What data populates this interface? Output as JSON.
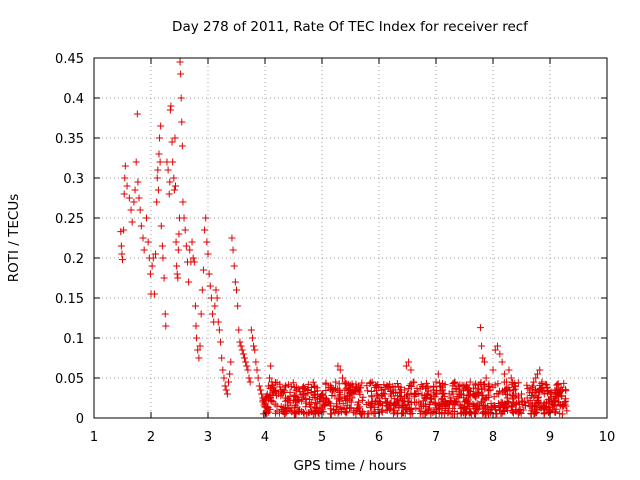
{
  "chart_data": {
    "type": "scatter",
    "title": "Day 278 of 2011, Rate Of TEC Index for receiver recf",
    "xlabel": "GPS time / hours",
    "ylabel": "ROTI / TECUs",
    "xlim": [
      1,
      10
    ],
    "ylim": [
      0,
      0.45
    ],
    "xticks": [
      "1",
      "2",
      "3",
      "4",
      "5",
      "6",
      "7",
      "8",
      "9",
      "10"
    ],
    "yticks": [
      "0",
      "0.05",
      "0.1",
      "0.15",
      "0.2",
      "0.25",
      "0.3",
      "0.35",
      "0.4",
      "0.45"
    ],
    "grid": true,
    "marker": "plus",
    "color": "#e00000",
    "series": [
      {
        "points": [
          [
            1.47,
            0.233
          ],
          [
            1.48,
            0.215
          ],
          [
            1.49,
            0.205
          ],
          [
            1.5,
            0.198
          ],
          [
            1.52,
            0.235
          ],
          [
            1.53,
            0.28
          ],
          [
            1.54,
            0.3
          ],
          [
            1.55,
            0.315
          ],
          [
            1.58,
            0.29
          ],
          [
            1.62,
            0.275
          ],
          [
            1.65,
            0.26
          ],
          [
            1.67,
            0.245
          ],
          [
            1.7,
            0.27
          ],
          [
            1.72,
            0.285
          ],
          [
            1.74,
            0.32
          ],
          [
            1.76,
            0.38
          ],
          [
            1.77,
            0.295
          ],
          [
            1.79,
            0.275
          ],
          [
            1.81,
            0.26
          ],
          [
            1.83,
            0.24
          ],
          [
            1.86,
            0.225
          ],
          [
            1.88,
            0.21
          ],
          [
            1.92,
            0.25
          ],
          [
            1.95,
            0.22
          ],
          [
            1.97,
            0.2
          ],
          [
            1.99,
            0.18
          ],
          [
            2.0,
            0.155
          ],
          [
            2.02,
            0.19
          ],
          [
            2.04,
            0.2
          ],
          [
            2.06,
            0.155
          ],
          [
            2.08,
            0.205
          ],
          [
            2.1,
            0.27
          ],
          [
            2.11,
            0.3
          ],
          [
            2.12,
            0.31
          ],
          [
            2.13,
            0.285
          ],
          [
            2.14,
            0.33
          ],
          [
            2.15,
            0.35
          ],
          [
            2.16,
            0.32
          ],
          [
            2.17,
            0.365
          ],
          [
            2.18,
            0.24
          ],
          [
            2.2,
            0.215
          ],
          [
            2.21,
            0.2
          ],
          [
            2.23,
            0.175
          ],
          [
            2.25,
            0.13
          ],
          [
            2.26,
            0.115
          ],
          [
            2.28,
            0.32
          ],
          [
            2.3,
            0.31
          ],
          [
            2.32,
            0.28
          ],
          [
            2.33,
            0.295
          ],
          [
            2.34,
            0.385
          ],
          [
            2.35,
            0.39
          ],
          [
            2.37,
            0.345
          ],
          [
            2.38,
            0.32
          ],
          [
            2.4,
            0.3
          ],
          [
            2.41,
            0.285
          ],
          [
            2.42,
            0.35
          ],
          [
            2.43,
            0.29
          ],
          [
            2.44,
            0.22
          ],
          [
            2.45,
            0.19
          ],
          [
            2.46,
            0.18
          ],
          [
            2.47,
            0.175
          ],
          [
            2.48,
            0.21
          ],
          [
            2.49,
            0.23
          ],
          [
            2.5,
            0.25
          ],
          [
            2.51,
            0.445
          ],
          [
            2.52,
            0.43
          ],
          [
            2.53,
            0.4
          ],
          [
            2.54,
            0.37
          ],
          [
            2.55,
            0.34
          ],
          [
            2.56,
            0.27
          ],
          [
            2.58,
            0.25
          ],
          [
            2.6,
            0.235
          ],
          [
            2.62,
            0.215
          ],
          [
            2.64,
            0.195
          ],
          [
            2.66,
            0.17
          ],
          [
            2.68,
            0.21
          ],
          [
            2.7,
            0.195
          ],
          [
            2.72,
            0.22
          ],
          [
            2.74,
            0.2
          ],
          [
            2.76,
            0.195
          ],
          [
            2.78,
            0.14
          ],
          [
            2.79,
            0.115
          ],
          [
            2.8,
            0.1
          ],
          [
            2.82,
            0.085
          ],
          [
            2.84,
            0.075
          ],
          [
            2.86,
            0.09
          ],
          [
            2.88,
            0.13
          ],
          [
            2.9,
            0.16
          ],
          [
            2.92,
            0.185
          ],
          [
            2.94,
            0.235
          ],
          [
            2.96,
            0.25
          ],
          [
            2.98,
            0.22
          ],
          [
            3.0,
            0.205
          ],
          [
            3.02,
            0.18
          ],
          [
            3.04,
            0.165
          ],
          [
            3.06,
            0.15
          ],
          [
            3.08,
            0.13
          ],
          [
            3.1,
            0.12
          ],
          [
            3.12,
            0.14
          ],
          [
            3.14,
            0.16
          ],
          [
            3.16,
            0.15
          ],
          [
            3.18,
            0.12
          ],
          [
            3.2,
            0.11
          ],
          [
            3.22,
            0.095
          ],
          [
            3.24,
            0.075
          ],
          [
            3.26,
            0.06
          ],
          [
            3.28,
            0.05
          ],
          [
            3.3,
            0.04
          ],
          [
            3.32,
            0.035
          ],
          [
            3.34,
            0.03
          ],
          [
            3.36,
            0.045
          ],
          [
            3.38,
            0.055
          ],
          [
            3.4,
            0.07
          ],
          [
            3.42,
            0.225
          ],
          [
            3.44,
            0.21
          ],
          [
            3.46,
            0.19
          ],
          [
            3.48,
            0.17
          ],
          [
            3.5,
            0.16
          ],
          [
            3.52,
            0.14
          ],
          [
            3.54,
            0.11
          ],
          [
            3.56,
            0.095
          ],
          [
            3.58,
            0.09
          ],
          [
            3.6,
            0.085
          ],
          [
            3.62,
            0.08
          ],
          [
            3.64,
            0.075
          ],
          [
            3.66,
            0.07
          ],
          [
            3.68,
            0.065
          ],
          [
            3.7,
            0.06
          ],
          [
            3.72,
            0.05
          ],
          [
            3.74,
            0.045
          ],
          [
            3.76,
            0.11
          ],
          [
            3.78,
            0.1
          ],
          [
            3.8,
            0.09
          ],
          [
            3.82,
            0.085
          ],
          [
            3.84,
            0.07
          ],
          [
            3.86,
            0.06
          ],
          [
            3.88,
            0.05
          ],
          [
            3.9,
            0.04
          ],
          [
            3.92,
            0.035
          ],
          [
            3.94,
            0.03
          ],
          [
            3.96,
            0.025
          ],
          [
            3.98,
            0.02
          ],
          [
            4.0,
            0.018
          ],
          [
            4.02,
            0.022
          ],
          [
            4.04,
            0.03
          ],
          [
            4.06,
            0.04
          ],
          [
            4.08,
            0.05
          ],
          [
            4.1,
            0.065
          ],
          [
            4.12,
            0.045
          ],
          [
            4.14,
            0.035
          ],
          [
            4.2,
            0.028
          ],
          [
            4.28,
            0.035
          ],
          [
            4.36,
            0.025
          ],
          [
            4.44,
            0.032
          ],
          [
            4.52,
            0.038
          ],
          [
            4.6,
            0.022
          ],
          [
            4.68,
            0.03
          ],
          [
            4.76,
            0.042
          ],
          [
            4.84,
            0.026
          ],
          [
            4.92,
            0.034
          ],
          [
            5.0,
            0.03
          ],
          [
            5.08,
            0.024
          ],
          [
            5.16,
            0.038
          ],
          [
            5.24,
            0.045
          ],
          [
            5.28,
            0.065
          ],
          [
            5.32,
            0.06
          ],
          [
            5.36,
            0.05
          ],
          [
            5.4,
            0.035
          ],
          [
            5.48,
            0.028
          ],
          [
            5.56,
            0.03
          ],
          [
            5.64,
            0.04
          ],
          [
            5.72,
            0.026
          ],
          [
            5.8,
            0.034
          ],
          [
            5.88,
            0.045
          ],
          [
            5.96,
            0.03
          ],
          [
            6.0,
            0.025
          ],
          [
            6.05,
            0.035
          ],
          [
            6.1,
            0.03
          ],
          [
            6.15,
            0.02
          ],
          [
            6.2,
            0.03
          ],
          [
            6.25,
            0.035
          ],
          [
            6.3,
            0.02
          ],
          [
            6.35,
            0.015
          ],
          [
            6.4,
            0.025
          ],
          [
            6.45,
            0.035
          ],
          [
            6.48,
            0.065
          ],
          [
            6.52,
            0.07
          ],
          [
            6.56,
            0.06
          ],
          [
            6.6,
            0.045
          ],
          [
            6.65,
            0.03
          ],
          [
            6.7,
            0.02
          ],
          [
            6.75,
            0.015
          ],
          [
            6.8,
            0.025
          ],
          [
            6.85,
            0.03
          ],
          [
            6.9,
            0.02
          ],
          [
            6.95,
            0.035
          ],
          [
            7.0,
            0.045
          ],
          [
            7.04,
            0.055
          ],
          [
            7.08,
            0.04
          ],
          [
            7.12,
            0.03
          ],
          [
            7.16,
            0.02
          ],
          [
            7.2,
            0.018
          ],
          [
            7.25,
            0.022
          ],
          [
            7.3,
            0.03
          ],
          [
            7.35,
            0.02
          ],
          [
            7.4,
            0.025
          ],
          [
            7.45,
            0.03
          ],
          [
            7.5,
            0.02
          ],
          [
            7.55,
            0.035
          ],
          [
            7.6,
            0.045
          ],
          [
            7.65,
            0.03
          ],
          [
            7.7,
            0.025
          ],
          [
            7.75,
            0.03
          ],
          [
            7.78,
            0.113
          ],
          [
            7.8,
            0.09
          ],
          [
            7.82,
            0.075
          ],
          [
            7.85,
            0.07
          ],
          [
            7.88,
            0.05
          ],
          [
            7.92,
            0.04
          ],
          [
            7.95,
            0.035
          ],
          [
            8.0,
            0.06
          ],
          [
            8.04,
            0.085
          ],
          [
            8.08,
            0.09
          ],
          [
            8.12,
            0.08
          ],
          [
            8.16,
            0.07
          ],
          [
            8.2,
            0.055
          ],
          [
            8.24,
            0.045
          ],
          [
            8.28,
            0.06
          ],
          [
            8.32,
            0.05
          ],
          [
            8.36,
            0.035
          ],
          [
            8.4,
            0.03
          ],
          [
            8.45,
            0.025
          ],
          [
            8.5,
            0.03
          ],
          [
            8.55,
            0.02
          ],
          [
            8.6,
            0.025
          ],
          [
            8.65,
            0.035
          ],
          [
            8.7,
            0.04
          ],
          [
            8.75,
            0.05
          ],
          [
            8.78,
            0.055
          ],
          [
            8.82,
            0.06
          ],
          [
            8.86,
            0.045
          ],
          [
            8.9,
            0.03
          ],
          [
            8.94,
            0.02
          ],
          [
            8.98,
            0.018
          ],
          [
            9.02,
            0.025
          ],
          [
            9.06,
            0.02
          ],
          [
            9.1,
            0.03
          ],
          [
            9.14,
            0.02
          ],
          [
            9.18,
            0.015
          ],
          [
            9.22,
            0.035
          ],
          [
            9.26,
            0.02
          ],
          [
            9.28,
            0.015
          ]
        ]
      }
    ],
    "dense_band": {
      "x_range": [
        3.95,
        9.3
      ],
      "y_range": [
        0.005,
        0.045
      ]
    }
  }
}
